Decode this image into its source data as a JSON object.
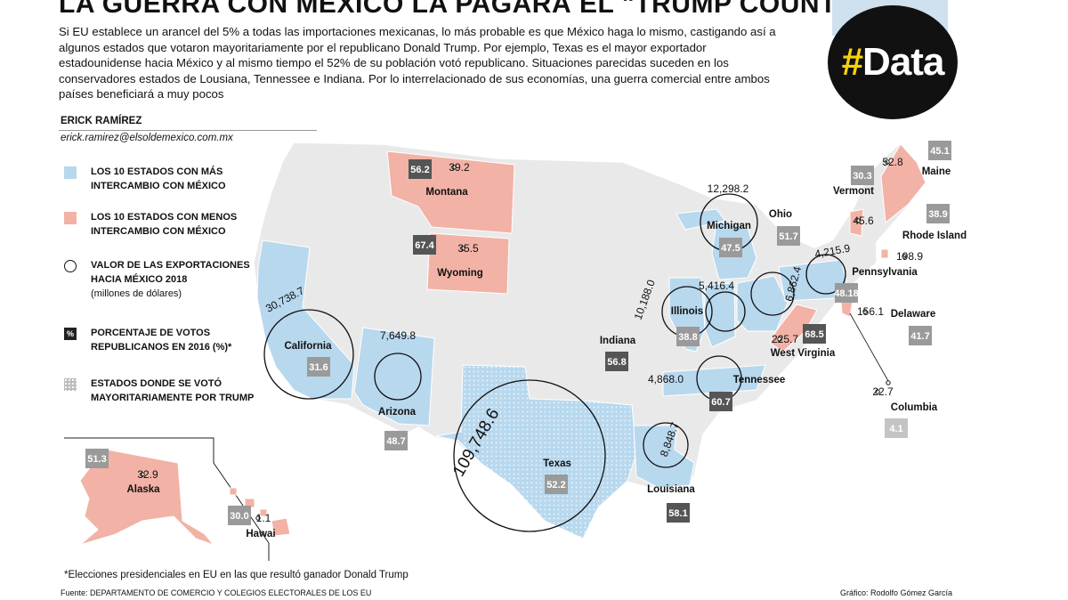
{
  "header": {
    "title": "LA GUERRA CON MÉXICO LA PAGARÁ EL \"TRUMP COUNTRY\"",
    "intro": "Si EU establece un arancel del 5% a todas las importaciones mexicanas, lo más probable es que México haga lo mismo, castigando así a algunos estados que votaron mayoritariamente por el republicano Donald Trump. Por ejemplo, Texas es el mayor exportador estadounidense hacia México y al mismo tiempo el 52% de su población votó republicano. Situaciones parecidas suceden en los conservadores estados de Lousiana, Tennessee e Indiana. Por lo interrelacionado de sus economías, una guerra comercial entre ambos países beneficiará a muy pocos",
    "author": "ERICK RAMÍREZ",
    "email": "erick.ramirez@elsoldemexico.com.mx",
    "badge": "#Data"
  },
  "legend": {
    "high_trade": "LOS 10 ESTADOS CON MÁS INTERCAMBIO CON MÉXICO",
    "low_trade": "LOS 10 ESTADOS CON MENOS INTERCAMBIO CON MÉXICO",
    "exports": "VALOR DE LAS EXPORTACIONES HACIA MÉXICO 2018",
    "exports_unit": "(millones de dólares)",
    "votes": "PORCENTAJE DE VOTOS REPUBLICANOS EN 2016 (%)*",
    "votes_icon": "%",
    "trump_states": "ESTADOS DONDE SE VOTÓ MAYORITARIAMENTE POR TRUMP"
  },
  "colors": {
    "high": "#b8d8ee",
    "low": "#f2b2a6",
    "base": "#e9e9e9",
    "border": "#ffffff",
    "box_dark": "#555555",
    "box_light": "#9a9a9a",
    "box_pale": "#c4c4c4"
  },
  "states": [
    {
      "name": "California",
      "export": "30,738.7",
      "votes": "31.6",
      "category": "high"
    },
    {
      "name": "Arizona",
      "export": "7,649.8",
      "votes": "48.7",
      "category": "high"
    },
    {
      "name": "Texas",
      "export": "109,748.6",
      "votes": "52.2",
      "category": "high"
    },
    {
      "name": "Louisiana",
      "export": "8,848.7",
      "votes": "58.1",
      "category": "high"
    },
    {
      "name": "Tennessee",
      "export": "4,868.0",
      "votes": "60.7",
      "category": "high"
    },
    {
      "name": "Illinois",
      "export": "10,188.0",
      "votes": "38.8",
      "category": "high"
    },
    {
      "name": "Indiana",
      "export": "5,416.4",
      "votes": "56.8",
      "category": "high"
    },
    {
      "name": "Michigan",
      "export": "12,298.2",
      "votes": "47.5",
      "category": "high"
    },
    {
      "name": "Ohio",
      "export": "6,862.4",
      "votes": "51.7",
      "category": "high"
    },
    {
      "name": "Pennsylvania",
      "export": "4,215.9",
      "votes": "48.18",
      "category": "high"
    },
    {
      "name": "Montana",
      "export": "39.2",
      "votes": "56.2",
      "category": "low"
    },
    {
      "name": "Wyoming",
      "export": "35.5",
      "votes": "67.4",
      "category": "low"
    },
    {
      "name": "West Virginia",
      "export": "225.7",
      "votes": "68.5",
      "category": "low"
    },
    {
      "name": "Delaware",
      "export": "156.1",
      "votes": "41.7",
      "category": "low"
    },
    {
      "name": "Columbia",
      "export": "22.7",
      "votes": "4.1",
      "category": "low"
    },
    {
      "name": "Rhode Island",
      "export": "198.9",
      "votes": "38.9",
      "category": "low"
    },
    {
      "name": "Vermont",
      "export": "45.6",
      "votes": "30.3",
      "category": "low"
    },
    {
      "name": "Maine",
      "export": "52.8",
      "votes": "45.1",
      "category": "low"
    },
    {
      "name": "Alaska",
      "export": "32.9",
      "votes": "51.3",
      "category": "low"
    },
    {
      "name": "Hawai",
      "export": "1.1",
      "votes": "30.0",
      "category": "low"
    }
  ],
  "footer": {
    "footnote": "*Elecciones presidenciales en EU  en las que resultó ganador Donald Trump",
    "source": "Fuente: DEPARTAMENTO DE COMERCIO Y COLEGIOS ELECTORALES DE LOS EU",
    "credit": "Gráfico: Rodolfo Gómez García"
  }
}
